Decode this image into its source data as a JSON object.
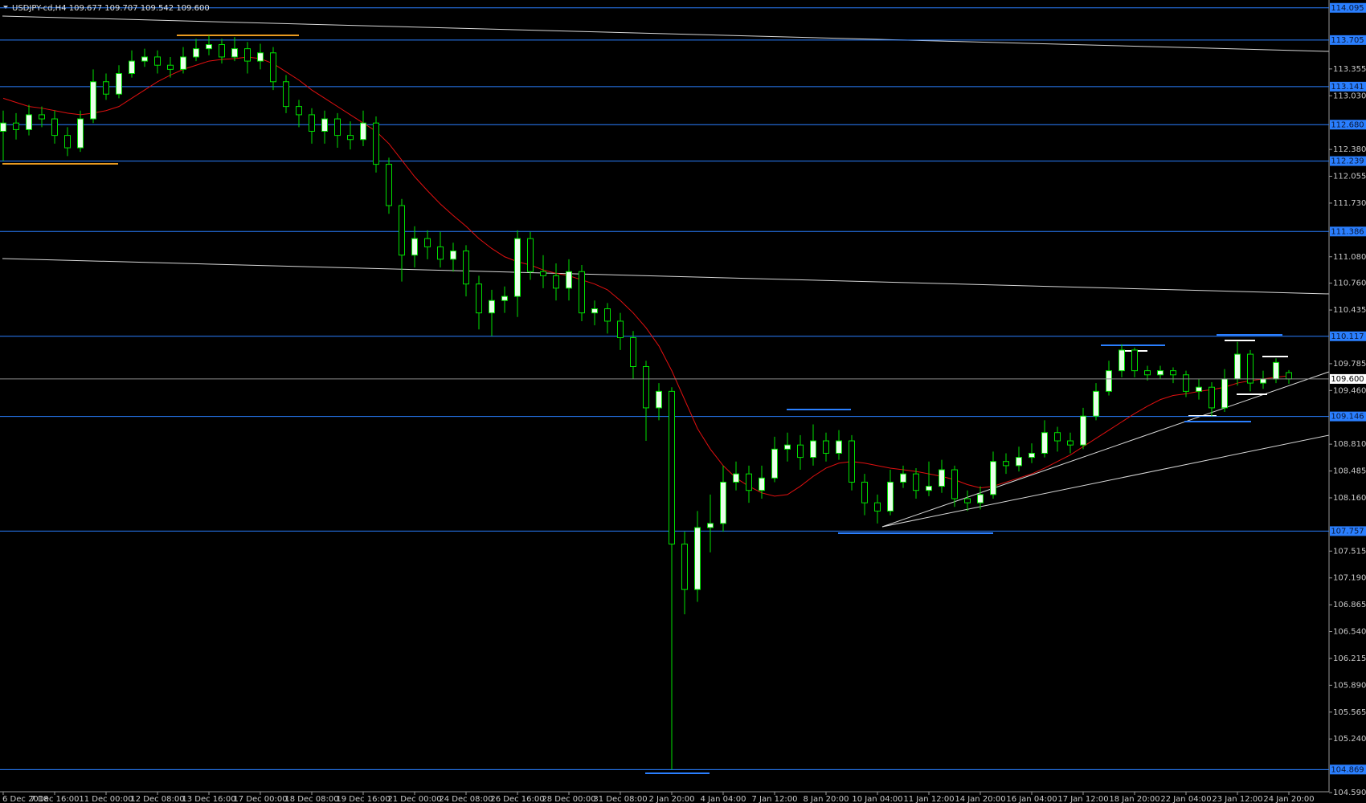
{
  "chart_data": {
    "type": "candlestick",
    "header": "USDJPY-cd,H4  109.677 109.707 109.542 109.600",
    "categories": [
      "6 Dec 2018",
      null,
      null,
      null,
      "7 Dec 16:00",
      null,
      null,
      null,
      "11 Dec 00:00",
      null,
      null,
      null,
      "12 Dec 08:00",
      null,
      null,
      null,
      "13 Dec 16:00",
      null,
      null,
      null,
      "17 Dec 00:00",
      null,
      null,
      null,
      "18 Dec 08:00",
      null,
      null,
      null,
      "19 Dec 16:00",
      null,
      null,
      null,
      "21 Dec 00:00",
      null,
      null,
      null,
      "24 Dec 08:00",
      null,
      null,
      null,
      "26 Dec 16:00",
      null,
      null,
      null,
      "28 Dec 00:00",
      null,
      null,
      null,
      "31 Dec 08:00",
      null,
      null,
      null,
      "2 Jan 20:00",
      null,
      null,
      null,
      "4 Jan 04:00",
      null,
      null,
      null,
      "7 Jan 12:00",
      null,
      null,
      null,
      "8 Jan 20:00",
      null,
      null,
      null,
      "10 Jan 04:00",
      null,
      null,
      null,
      "11 Jan 12:00",
      null,
      null,
      null,
      "14 Jan 20:00",
      null,
      null,
      null,
      "16 Jan 04:00",
      null,
      null,
      null,
      "17 Jan 12:00",
      null,
      null,
      null,
      "18 Jan 20:00",
      null,
      null,
      null,
      "22 Jan 04:00",
      null,
      null,
      null,
      "23 Jan 12:00",
      null,
      null,
      null,
      "24 Jan 20:00"
    ],
    "open": [
      112.6,
      112.7,
      112.62,
      112.8,
      112.75,
      112.55,
      112.4,
      112.75,
      113.2,
      113.05,
      113.3,
      113.45,
      113.5,
      113.4,
      113.35,
      113.5,
      113.6,
      113.65,
      113.5,
      113.6,
      113.45,
      113.55,
      113.2,
      112.9,
      112.8,
      112.6,
      112.75,
      112.55,
      112.5,
      112.7,
      112.2,
      111.7,
      111.1,
      111.3,
      111.2,
      111.05,
      111.15,
      110.75,
      110.4,
      110.55,
      110.6,
      111.3,
      110.9,
      110.85,
      110.7,
      110.9,
      110.4,
      110.45,
      110.3,
      110.1,
      109.75,
      109.25,
      109.45,
      107.6,
      107.05,
      107.8,
      107.85,
      108.35,
      108.45,
      108.25,
      108.4,
      108.75,
      108.8,
      108.65,
      108.85,
      108.7,
      108.85,
      108.35,
      108.1,
      108.0,
      108.35,
      108.45,
      108.25,
      108.3,
      108.5,
      108.15,
      108.1,
      108.2,
      108.6,
      108.55,
      108.65,
      108.7,
      108.95,
      108.85,
      108.8,
      109.15,
      109.45,
      109.7,
      109.95,
      109.7,
      109.65,
      109.7,
      109.65,
      109.45,
      109.5,
      109.25,
      109.6,
      109.9,
      109.55,
      109.6,
      109.677
    ],
    "high": [
      112.85,
      112.82,
      112.92,
      112.9,
      112.85,
      112.65,
      112.85,
      113.35,
      113.3,
      113.4,
      113.58,
      113.6,
      113.58,
      113.5,
      113.62,
      113.72,
      113.76,
      113.72,
      113.74,
      113.68,
      113.66,
      113.62,
      113.28,
      112.98,
      112.88,
      112.85,
      112.82,
      112.72,
      112.85,
      112.78,
      112.28,
      111.78,
      111.45,
      111.4,
      111.38,
      111.25,
      111.22,
      110.85,
      110.68,
      110.72,
      111.4,
      111.38,
      111.1,
      111.0,
      111.05,
      110.98,
      110.55,
      110.52,
      110.4,
      110.18,
      109.82,
      109.55,
      109.5,
      107.75,
      108.0,
      108.2,
      108.55,
      108.6,
      108.55,
      108.55,
      108.9,
      108.95,
      108.92,
      109.05,
      108.95,
      108.98,
      108.92,
      108.45,
      108.2,
      108.5,
      108.55,
      108.52,
      108.6,
      108.62,
      108.55,
      108.25,
      108.3,
      108.72,
      108.7,
      108.78,
      108.82,
      109.1,
      109.02,
      108.95,
      109.25,
      109.55,
      109.82,
      110.02,
      109.98,
      109.76,
      109.76,
      109.74,
      109.7,
      109.6,
      109.56,
      109.72,
      110.05,
      109.95,
      109.7,
      109.85,
      109.707
    ],
    "low": [
      112.24,
      112.5,
      112.55,
      112.65,
      112.45,
      112.3,
      112.35,
      112.7,
      112.98,
      113.0,
      113.25,
      113.38,
      113.3,
      113.25,
      113.3,
      113.45,
      113.52,
      113.42,
      113.45,
      113.3,
      113.35,
      113.1,
      112.82,
      112.65,
      112.45,
      112.45,
      112.4,
      112.38,
      112.42,
      112.1,
      111.6,
      110.78,
      110.95,
      111.05,
      110.95,
      110.9,
      110.6,
      110.2,
      110.12,
      110.4,
      110.35,
      110.8,
      110.7,
      110.55,
      110.55,
      110.3,
      110.25,
      110.15,
      109.95,
      109.6,
      108.85,
      109.1,
      104.87,
      106.75,
      106.9,
      107.5,
      107.75,
      108.25,
      108.1,
      108.15,
      108.35,
      108.6,
      108.5,
      108.55,
      108.6,
      108.62,
      108.25,
      107.95,
      107.85,
      107.95,
      108.28,
      108.15,
      108.18,
      108.22,
      108.05,
      108.0,
      108.02,
      108.15,
      108.45,
      108.48,
      108.58,
      108.65,
      108.72,
      108.7,
      108.75,
      109.1,
      109.4,
      109.62,
      109.62,
      109.58,
      109.6,
      109.55,
      109.38,
      109.35,
      109.15,
      109.2,
      109.52,
      109.45,
      109.48,
      109.55,
      109.542
    ],
    "close": [
      112.7,
      112.62,
      112.8,
      112.75,
      112.55,
      112.4,
      112.75,
      113.2,
      113.05,
      113.3,
      113.45,
      113.5,
      113.4,
      113.35,
      113.5,
      113.6,
      113.65,
      113.5,
      113.6,
      113.45,
      113.55,
      113.2,
      112.9,
      112.8,
      112.6,
      112.75,
      112.55,
      112.5,
      112.7,
      112.2,
      111.7,
      111.1,
      111.3,
      111.2,
      111.05,
      111.15,
      110.75,
      110.4,
      110.55,
      110.6,
      111.3,
      110.9,
      110.85,
      110.7,
      110.9,
      110.4,
      110.45,
      110.3,
      110.1,
      109.75,
      109.25,
      109.45,
      107.6,
      107.05,
      107.8,
      107.85,
      108.35,
      108.45,
      108.25,
      108.4,
      108.75,
      108.8,
      108.65,
      108.85,
      108.7,
      108.85,
      108.35,
      108.1,
      108.0,
      108.35,
      108.45,
      108.25,
      108.3,
      108.5,
      108.15,
      108.1,
      108.2,
      108.6,
      108.55,
      108.65,
      108.7,
      108.95,
      108.85,
      108.8,
      109.15,
      109.45,
      109.7,
      109.95,
      109.7,
      109.65,
      109.7,
      109.65,
      109.45,
      109.5,
      109.25,
      109.6,
      109.9,
      109.55,
      109.6,
      109.8,
      109.6
    ],
    "ma": {
      "color": "#e01010",
      "values": [
        113.0,
        112.95,
        112.9,
        112.88,
        112.85,
        112.82,
        112.8,
        112.82,
        112.85,
        112.9,
        113.0,
        113.1,
        113.2,
        113.28,
        113.35,
        113.4,
        113.45,
        113.47,
        113.48,
        113.5,
        113.48,
        113.42,
        113.32,
        113.22,
        113.1,
        113.0,
        112.9,
        112.8,
        112.7,
        112.6,
        112.45,
        112.25,
        112.05,
        111.88,
        111.72,
        111.58,
        111.45,
        111.3,
        111.18,
        111.08,
        111.02,
        110.98,
        110.92,
        110.88,
        110.85,
        110.8,
        110.75,
        110.68,
        110.55,
        110.4,
        110.22,
        110.0,
        109.7,
        109.35,
        109.0,
        108.75,
        108.55,
        108.4,
        108.3,
        108.22,
        108.18,
        108.2,
        108.3,
        108.42,
        108.52,
        108.58,
        108.6,
        108.58,
        108.55,
        108.52,
        108.5,
        108.48,
        108.45,
        108.42,
        108.38,
        108.32,
        108.28,
        108.3,
        108.35,
        108.4,
        108.45,
        108.52,
        108.6,
        108.68,
        108.78,
        108.88,
        108.98,
        109.08,
        109.18,
        109.27,
        109.35,
        109.4,
        109.42,
        109.45,
        109.47,
        109.5,
        109.55,
        109.58,
        109.6,
        109.62,
        109.64
      ]
    },
    "bull_color": "#eaffea",
    "bear_color": "#000000",
    "wick_color": "#00e000",
    "ylim": [
      104.6,
      114.19
    ],
    "yticks": [
      113.355,
      {
        "value": 113.03,
        "label": "113.030"
      },
      {
        "value": 112.38,
        "label": "112.380"
      },
      112.055,
      {
        "value": 111.73,
        "label": "111.730"
      },
      {
        "value": 111.08,
        "label": "111.080"
      },
      {
        "value": 110.76,
        "label": "110.760"
      },
      110.435,
      109.785,
      {
        "value": 109.46,
        "label": "109.460"
      },
      {
        "value": 108.81,
        "label": "108.810"
      },
      108.485,
      {
        "value": 108.16,
        "label": "108.160"
      },
      107.515,
      {
        "value": 107.19,
        "label": "107.190"
      },
      106.865,
      {
        "value": 106.54,
        "label": "106.540"
      },
      106.215,
      {
        "value": 105.89,
        "label": "105.890"
      },
      105.565,
      {
        "value": 105.24,
        "label": "105.240"
      },
      {
        "value": 104.59,
        "label": "104.590"
      }
    ],
    "levels": {
      "color": "#2a7fff",
      "values": [
        114.095,
        113.705,
        113.141,
        {
          "value": 112.68,
          "label": "112.680"
        },
        112.239,
        111.386,
        110.117,
        109.146,
        107.757,
        104.869
      ]
    },
    "price_line": {
      "value": 109.6,
      "label": "109.600"
    }
  }
}
